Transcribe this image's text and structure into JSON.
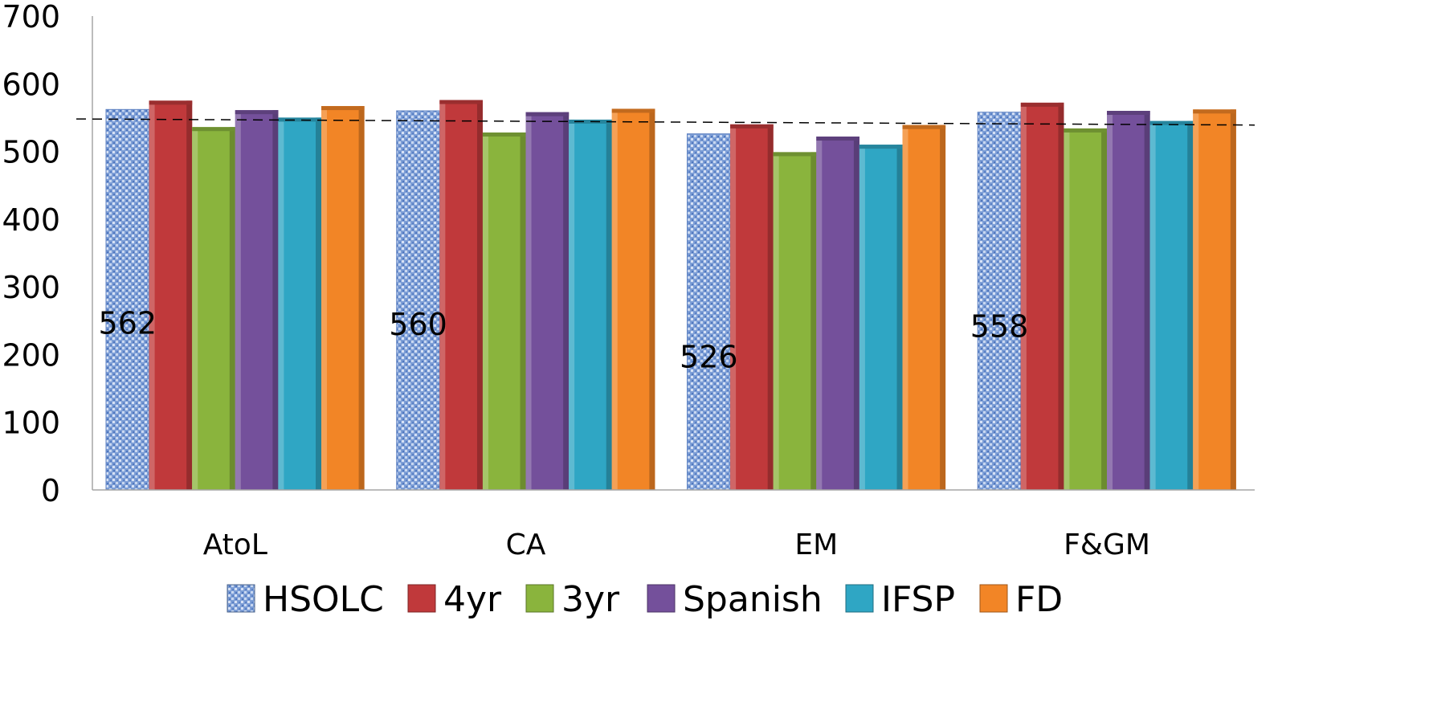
{
  "chart_data": {
    "type": "bar",
    "categories": [
      "AtoL",
      "CA",
      "EM",
      "F&GM"
    ],
    "ylim": [
      0,
      700
    ],
    "yticks": [
      "0",
      "100",
      "200",
      "300",
      "400",
      "500",
      "600",
      "700"
    ],
    "grid": false,
    "legend_position": "bottom",
    "series": [
      {
        "name": "HSOLC",
        "values": [
          562,
          560,
          526,
          558
        ],
        "color": "#6f95d3",
        "pattern": "texture"
      },
      {
        "name": "4yr",
        "values": [
          575,
          576,
          540,
          572
        ],
        "color": "#c0393b"
      },
      {
        "name": "3yr",
        "values": [
          536,
          528,
          499,
          534
        ],
        "color": "#8ab43d"
      },
      {
        "name": "Spanish",
        "values": [
          561,
          558,
          522,
          560
        ],
        "color": "#74509b"
      },
      {
        "name": "IFSP",
        "values": [
          550,
          547,
          510,
          545
        ],
        "color": "#2fa6c4"
      },
      {
        "name": "FD",
        "values": [
          567,
          563,
          539,
          562
        ],
        "color": "#f28526"
      }
    ],
    "data_labels": {
      "series": "HSOLC",
      "texts": [
        "562",
        "560",
        "526",
        "558"
      ],
      "offsets_data": [
        245,
        243,
        195,
        240
      ]
    },
    "reference_line": {
      "style": "dashed",
      "y_start": 548,
      "y_end": 539
    }
  }
}
